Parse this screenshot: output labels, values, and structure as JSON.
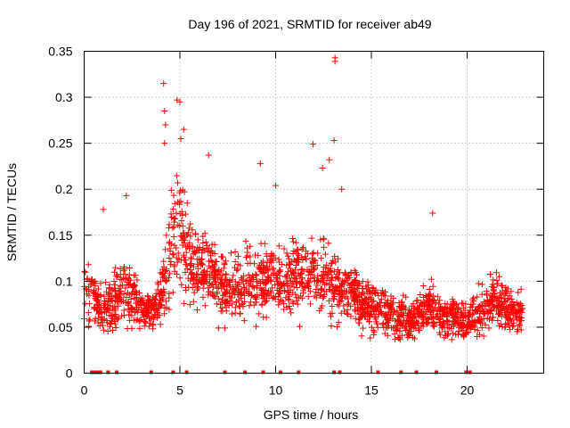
{
  "chart_data": {
    "type": "scatter",
    "title": "Day 196 of 2021, SRMTID for receiver ab49",
    "xlabel": "GPS time / hours",
    "ylabel": "SRMTID / TECUs",
    "xlim": [
      0,
      24
    ],
    "ylim": [
      0,
      0.35
    ],
    "xticks": [
      0,
      5,
      10,
      15,
      20
    ],
    "yticks": [
      0,
      0.05,
      0.1,
      0.15,
      0.2,
      0.25,
      0.3,
      0.35
    ],
    "xtick_labels": [
      "0",
      "5",
      "10",
      "15",
      "20"
    ],
    "ytick_labels": [
      "0",
      "0.05",
      "0.1",
      "0.15",
      "0.2",
      "0.25",
      "0.3",
      "0.35"
    ],
    "grid": true,
    "marker": "plus",
    "series_color": "#ff0000",
    "trend": {
      "x": [
        0.0,
        0.5,
        1.0,
        1.5,
        2.0,
        2.5,
        3.0,
        3.5,
        4.0,
        4.5,
        5.0,
        5.5,
        6.0,
        6.5,
        7.0,
        7.5,
        8.0,
        8.5,
        9.0,
        9.5,
        10.0,
        10.5,
        11.0,
        11.5,
        12.0,
        12.5,
        13.0,
        13.5,
        14.0,
        14.5,
        15.0,
        15.5,
        16.0,
        16.5,
        17.0,
        17.5,
        18.0,
        18.5,
        19.0,
        19.5,
        20.0,
        20.5,
        21.0,
        21.5,
        22.0,
        22.5,
        23.0
      ],
      "median": [
        0.095,
        0.08,
        0.07,
        0.075,
        0.09,
        0.085,
        0.07,
        0.065,
        0.085,
        0.14,
        0.16,
        0.12,
        0.11,
        0.115,
        0.1,
        0.09,
        0.095,
        0.1,
        0.105,
        0.1,
        0.1,
        0.095,
        0.11,
        0.105,
        0.11,
        0.1,
        0.095,
        0.09,
        0.085,
        0.075,
        0.07,
        0.07,
        0.065,
        0.06,
        0.055,
        0.06,
        0.07,
        0.065,
        0.06,
        0.06,
        0.055,
        0.06,
        0.075,
        0.08,
        0.07,
        0.065,
        0.07
      ],
      "spread": [
        0.03,
        0.03,
        0.025,
        0.035,
        0.04,
        0.035,
        0.02,
        0.02,
        0.03,
        0.06,
        0.06,
        0.05,
        0.05,
        0.045,
        0.04,
        0.035,
        0.035,
        0.04,
        0.04,
        0.04,
        0.04,
        0.04,
        0.04,
        0.04,
        0.04,
        0.04,
        0.04,
        0.035,
        0.035,
        0.03,
        0.03,
        0.025,
        0.025,
        0.025,
        0.02,
        0.025,
        0.03,
        0.025,
        0.025,
        0.02,
        0.02,
        0.025,
        0.03,
        0.03,
        0.025,
        0.02,
        0.02
      ],
      "points_per_hour": 95,
      "x_end": 22.9
    },
    "outliers": [
      {
        "x": 4.15,
        "y": 0.315
      },
      {
        "x": 4.85,
        "y": 0.297
      },
      {
        "x": 5.0,
        "y": 0.295
      },
      {
        "x": 4.2,
        "y": 0.285
      },
      {
        "x": 4.25,
        "y": 0.27
      },
      {
        "x": 5.2,
        "y": 0.265
      },
      {
        "x": 4.2,
        "y": 0.25
      },
      {
        "x": 5.05,
        "y": 0.255
      },
      {
        "x": 6.5,
        "y": 0.237
      },
      {
        "x": 9.2,
        "y": 0.228
      },
      {
        "x": 11.95,
        "y": 0.249
      },
      {
        "x": 13.1,
        "y": 0.343
      },
      {
        "x": 13.1,
        "y": 0.339
      },
      {
        "x": 13.05,
        "y": 0.253
      },
      {
        "x": 12.45,
        "y": 0.223
      },
      {
        "x": 12.8,
        "y": 0.232
      },
      {
        "x": 13.45,
        "y": 0.2
      },
      {
        "x": 10.0,
        "y": 0.204
      },
      {
        "x": 18.2,
        "y": 0.174
      },
      {
        "x": 1.0,
        "y": 0.178
      },
      {
        "x": 2.2,
        "y": 0.193
      }
    ],
    "zero_values_x": [
      0.4,
      0.55,
      0.7,
      0.85,
      1.25,
      1.7,
      3.5,
      4.65,
      5.35,
      7.35,
      8.4,
      9.35,
      10.25,
      11.2,
      13.05,
      13.35,
      15.35,
      16.55,
      17.35,
      18.4,
      19.95,
      20.15
    ]
  }
}
